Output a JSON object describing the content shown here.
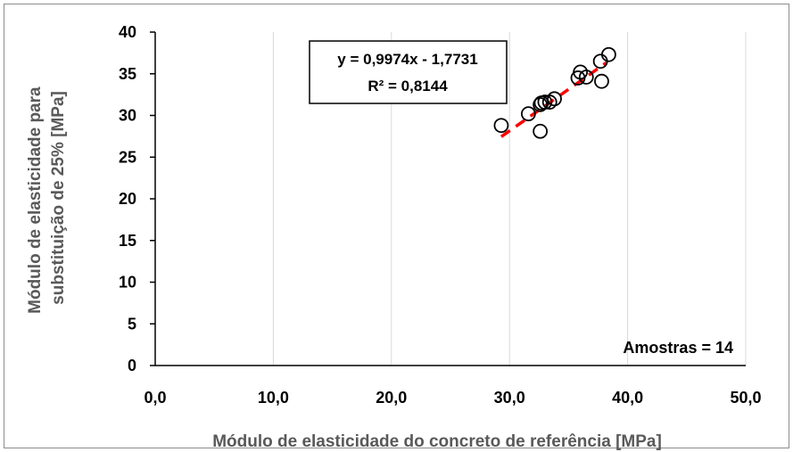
{
  "chart_data": {
    "type": "scatter",
    "xlabel": "Módulo de elasticidade do concreto de referência [MPa]",
    "ylabel_lines": [
      "Módulo de elasticidade para",
      "substituição de 25% [MPa]"
    ],
    "xlim": [
      0,
      50
    ],
    "ylim": [
      0,
      40
    ],
    "x_ticks": [
      0,
      10,
      20,
      30,
      40,
      50
    ],
    "x_tick_labels": [
      "0,0",
      "10,0",
      "20,0",
      "30,0",
      "40,0",
      "50,0"
    ],
    "y_ticks": [
      0,
      5,
      10,
      15,
      20,
      25,
      30,
      35,
      40
    ],
    "y_tick_labels": [
      "0",
      "5",
      "10",
      "15",
      "20",
      "25",
      "30",
      "35",
      "40"
    ],
    "grid": "vertical",
    "series": [
      {
        "marker": "open-circle",
        "x": [
          29.3,
          31.6,
          32.6,
          32.7,
          33.0,
          33.4,
          33.8,
          35.8,
          36.0,
          36.5,
          37.7,
          37.8,
          38.4,
          32.6
        ],
        "y": [
          28.8,
          30.2,
          31.3,
          31.5,
          31.6,
          31.6,
          32.0,
          34.5,
          35.2,
          34.6,
          36.5,
          34.1,
          37.3,
          28.1
        ]
      }
    ],
    "trendline": {
      "type": "linear",
      "slope": 0.9974,
      "intercept": -1.7731,
      "x_range": [
        29.3,
        38.2
      ],
      "color": "#ff0000",
      "style": "dashed"
    },
    "annotations": {
      "equation": "y = 0,9974x - 1,7731",
      "r_squared": "R² = 0,8144",
      "sample_note": "Amostras = 14"
    }
  }
}
